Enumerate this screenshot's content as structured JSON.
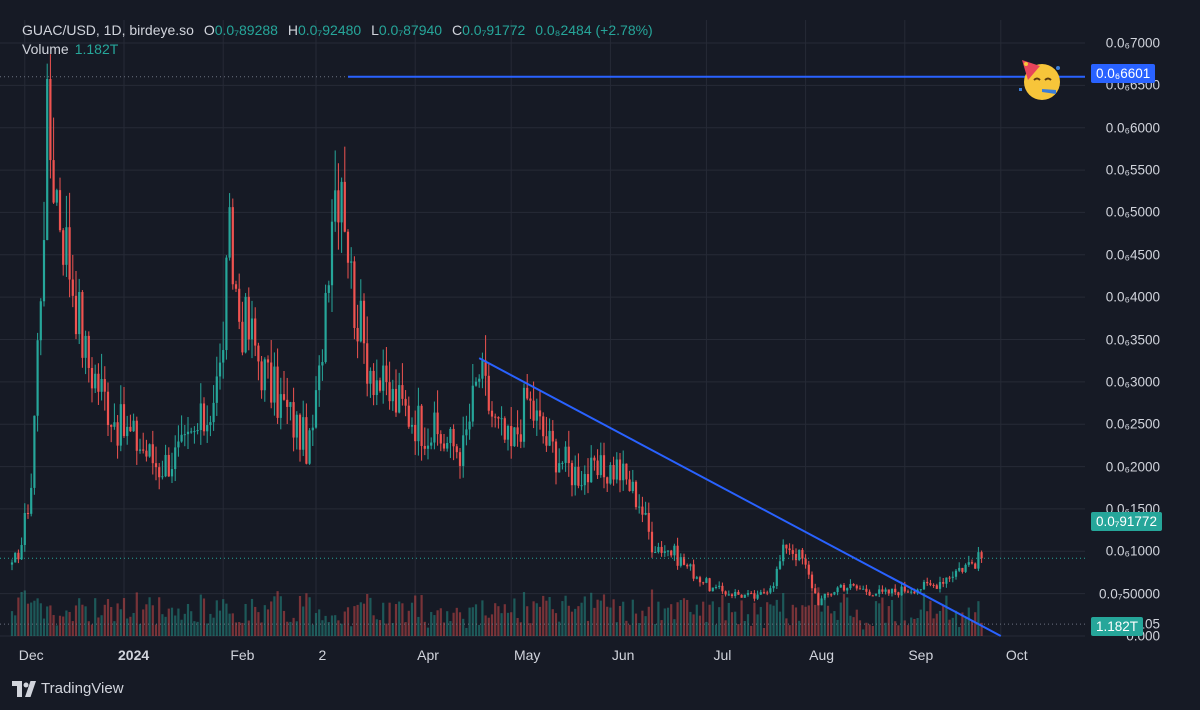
{
  "header": {
    "symbol": "GUAC/USD, 1D, birdeye.so",
    "o_label": "O",
    "o_value": "0.0₇89288",
    "h_label": "H",
    "h_value": "0.0₇92480",
    "l_label": "L",
    "l_value": "0.0₇87940",
    "c_label": "C",
    "c_value": "0.0₇91772",
    "change": "0.0₈2484 (+2.78%)",
    "volume_label": "Volume",
    "volume_value": "1.182T"
  },
  "brand": {
    "name": "TradingView",
    "icon": "tradingview-logo-icon"
  },
  "emoji": {
    "icon": "party-face-icon"
  },
  "colors": {
    "background": "#161a25",
    "up": "#26a69a",
    "down": "#ef5350",
    "trendline": "#2962ff",
    "grid": "#262a36",
    "text": "#d1d4dc"
  },
  "axis": {
    "y_ticks": [
      "0.0₆7000",
      "0.0₆6500",
      "0.0₆6000",
      "0.0₆5500",
      "0.0₆5000",
      "0.0₆4500",
      "0.0₆4000",
      "0.0₆3500",
      "0.0₆3000",
      "0.0₆2500",
      "0.0₆2000",
      "0.0₆1500",
      "0.0₆1000",
      "0.0₇50000",
      "0.0₂₁105",
      "0.000"
    ],
    "x_ticks": [
      {
        "label": "Dec",
        "bold": false
      },
      {
        "label": "2024",
        "bold": true
      },
      {
        "label": "Feb",
        "bold": false
      },
      {
        "label": "2",
        "bold": false
      },
      {
        "label": "Apr",
        "bold": false
      },
      {
        "label": "May",
        "bold": false
      },
      {
        "label": "Jun",
        "bold": false
      },
      {
        "label": "Jul",
        "bold": false
      },
      {
        "label": "Aug",
        "bold": false
      },
      {
        "label": "Sep",
        "bold": false
      },
      {
        "label": "Oct",
        "bold": false
      }
    ]
  },
  "price_tags": {
    "horizontal_level": "0.0₆6601",
    "last_price": "0.0₇91772",
    "volume": "1.182T"
  },
  "chart_data": {
    "type": "candlestick",
    "unit": "1e-7 USD",
    "y_range": [
      0,
      700
    ],
    "horizontal_level": 660.1,
    "last_close": 91.772,
    "trendline": {
      "from": [
        "2024-04-21",
        328
      ],
      "to": [
        "2024-10-01",
        0
      ]
    },
    "volume_last": "1.182T",
    "keypoints": [
      [
        "2023-11-27",
        80
      ],
      [
        "2023-11-30",
        110
      ],
      [
        "2023-12-03",
        180
      ],
      [
        "2023-12-06",
        420
      ],
      [
        "2023-12-08",
        600
      ],
      [
        "2023-12-10",
        550
      ],
      [
        "2023-12-13",
        480
      ],
      [
        "2023-12-16",
        420
      ],
      [
        "2023-12-20",
        330
      ],
      [
        "2023-12-25",
        290
      ],
      [
        "2023-12-30",
        250
      ],
      [
        "2024-01-05",
        230
      ],
      [
        "2024-01-12",
        200
      ],
      [
        "2024-01-20",
        220
      ],
      [
        "2024-01-27",
        260
      ],
      [
        "2024-01-31",
        310
      ],
      [
        "2024-02-03",
        460
      ],
      [
        "2024-02-06",
        380
      ],
      [
        "2024-02-10",
        350
      ],
      [
        "2024-02-15",
        300
      ],
      [
        "2024-02-20",
        270
      ],
      [
        "2024-02-25",
        240
      ],
      [
        "2024-02-28",
        220
      ],
      [
        "2024-03-02",
        300
      ],
      [
        "2024-03-06",
        520
      ],
      [
        "2024-03-09",
        560
      ],
      [
        "2024-03-12",
        420
      ],
      [
        "2024-03-16",
        340
      ],
      [
        "2024-03-22",
        290
      ],
      [
        "2024-03-28",
        270
      ],
      [
        "2024-04-03",
        250
      ],
      [
        "2024-04-10",
        230
      ],
      [
        "2024-04-16",
        220
      ],
      [
        "2024-04-21",
        310
      ],
      [
        "2024-04-26",
        250
      ],
      [
        "2024-05-01",
        220
      ],
      [
        "2024-05-06",
        280
      ],
      [
        "2024-05-12",
        230
      ],
      [
        "2024-05-20",
        195
      ],
      [
        "2024-05-27",
        190
      ],
      [
        "2024-06-03",
        200
      ],
      [
        "2024-06-10",
        160
      ],
      [
        "2024-06-14",
        110
      ],
      [
        "2024-06-20",
        100
      ],
      [
        "2024-06-27",
        75
      ],
      [
        "2024-07-03",
        55
      ],
      [
        "2024-07-10",
        50
      ],
      [
        "2024-07-17",
        45
      ],
      [
        "2024-07-22",
        65
      ],
      [
        "2024-07-26",
        110
      ],
      [
        "2024-07-31",
        90
      ],
      [
        "2024-08-05",
        40
      ],
      [
        "2024-08-12",
        60
      ],
      [
        "2024-08-19",
        55
      ],
      [
        "2024-08-25",
        50
      ],
      [
        "2024-09-01",
        55
      ],
      [
        "2024-09-10",
        60
      ],
      [
        "2024-09-18",
        80
      ],
      [
        "2024-09-25",
        91.772
      ]
    ]
  }
}
